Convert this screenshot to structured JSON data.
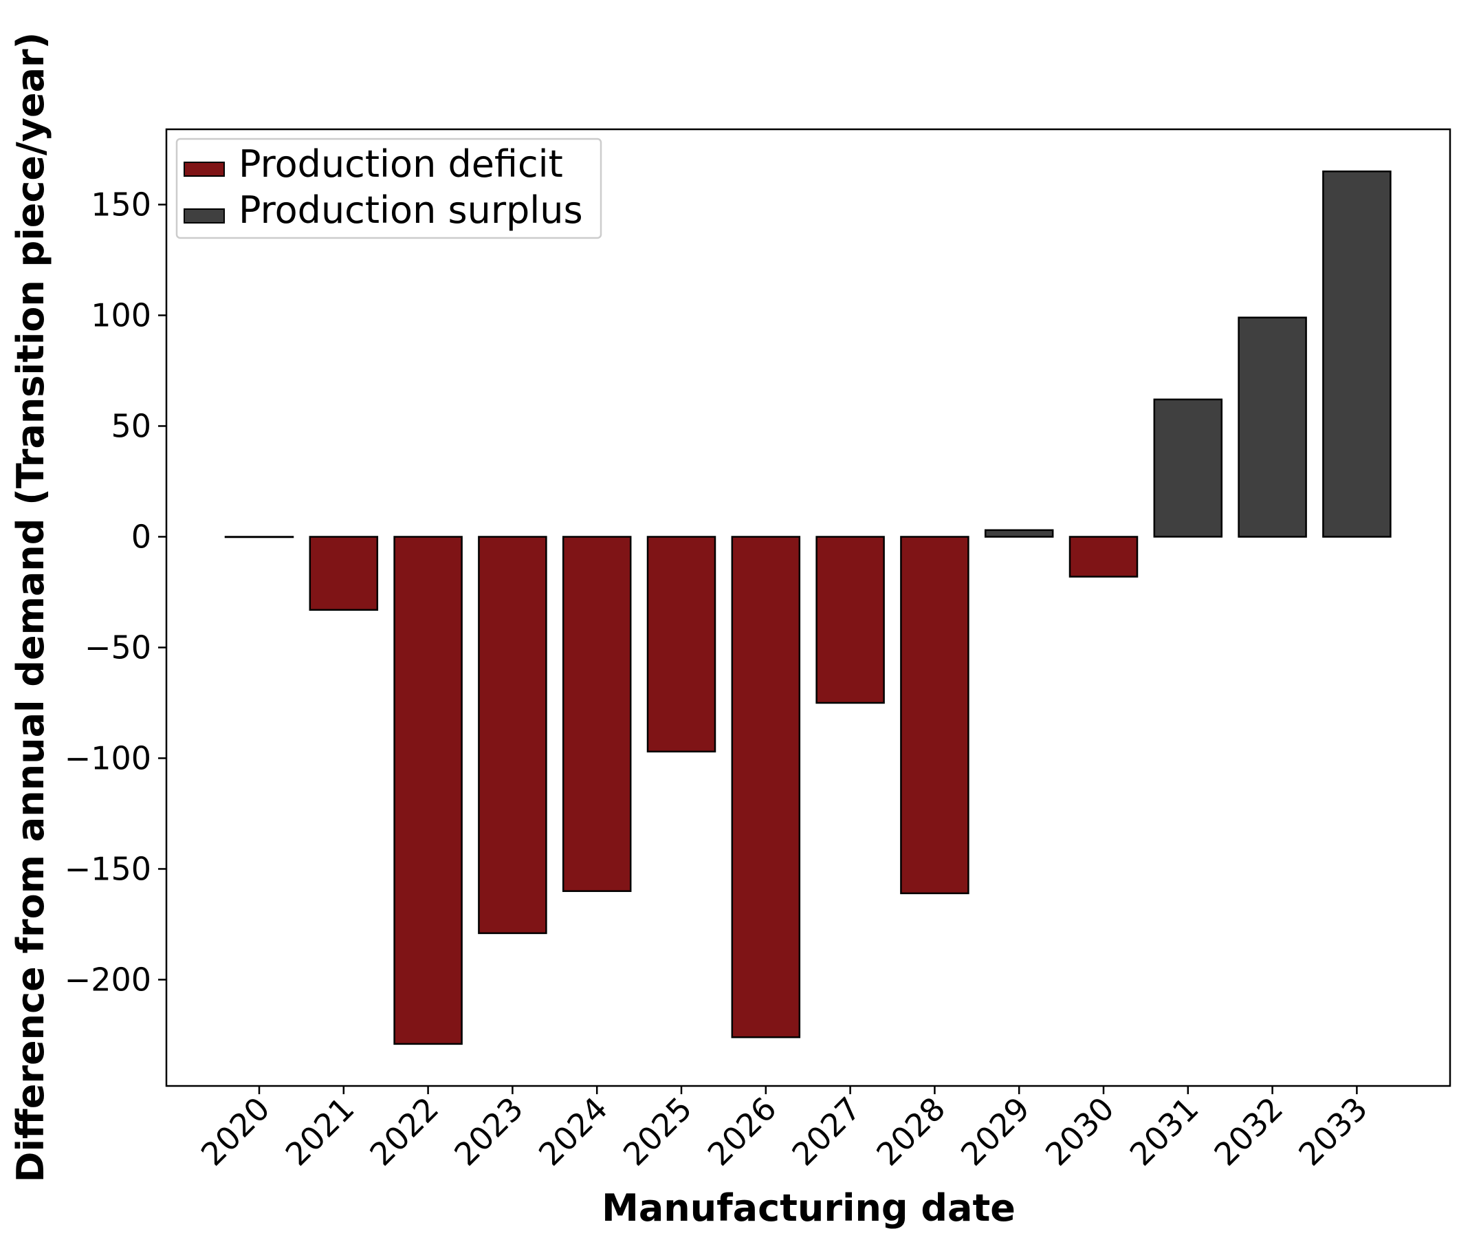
{
  "chart_data": {
    "type": "bar",
    "title": "",
    "xlabel": "Manufacturing date",
    "ylabel": "Difference from annual demand (Transition piece/year)",
    "categories": [
      "2020",
      "2021",
      "2022",
      "2023",
      "2024",
      "2025",
      "2026",
      "2027",
      "2028",
      "2029",
      "2030",
      "2031",
      "2032",
      "2033"
    ],
    "values": [
      0,
      -33,
      -229,
      -179,
      -160,
      -97,
      -226,
      -75,
      -161,
      3,
      -18,
      62,
      99,
      165
    ],
    "series": [
      {
        "name": "Production deficit",
        "color": "#7f1416"
      },
      {
        "name": "Production surplus",
        "color": "#404040"
      }
    ],
    "yticks": [
      -200,
      -150,
      -100,
      -50,
      0,
      50,
      100,
      150
    ],
    "ytick_labels": [
      "−200",
      "−150",
      "−100",
      "−50",
      "0",
      "50",
      "100",
      "150"
    ],
    "ylim": [
      -248,
      184
    ],
    "grid": false,
    "legend_position": "top-left",
    "xtick_rotation": 45
  }
}
